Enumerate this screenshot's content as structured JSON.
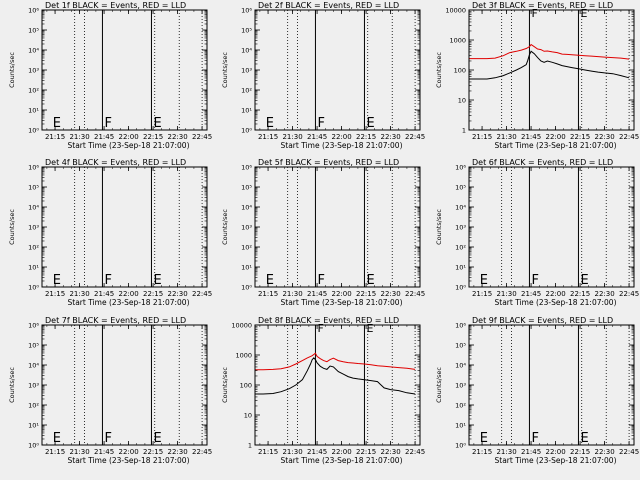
{
  "figure": {
    "background": "#efefef",
    "ylabel": "Counts/sec",
    "xlabel": "Start Time (23-Sep-18 21:07:00)",
    "xticks": [
      "21:15",
      "21:30",
      "21:45",
      "22:00",
      "22:15",
      "22:30",
      "22:45"
    ],
    "colors": {
      "events": "#000000",
      "lld": "#e00000",
      "axis": "#000000"
    },
    "marker_labels": [
      "E",
      "F",
      "E"
    ]
  },
  "chart_data": [
    {
      "type": "line",
      "title": "Det 1f BLACK = Events, RED = LLD",
      "empty": true,
      "yscale": "log",
      "ylim": [
        1,
        1000000
      ],
      "yticks": [
        "10⁰",
        "10¹",
        "10²",
        "10³",
        "10⁴",
        "10⁵",
        "10⁶"
      ],
      "marker_times": [
        "21:13",
        "21:44",
        "22:14"
      ],
      "dotted_times": [
        "21:27",
        "21:33",
        "22:16",
        "22:31",
        "22:45"
      ],
      "series": []
    },
    {
      "type": "line",
      "title": "Det 2f BLACK = Events, RED = LLD",
      "empty": true,
      "yscale": "log",
      "ylim": [
        1,
        1000000
      ],
      "yticks": [
        "10⁰",
        "10¹",
        "10²",
        "10³",
        "10⁴",
        "10⁵",
        "10⁶"
      ],
      "marker_times": [
        "21:13",
        "21:44",
        "22:14"
      ],
      "dotted_times": [
        "21:27",
        "21:33",
        "22:16",
        "22:31",
        "22:45"
      ],
      "series": []
    },
    {
      "type": "line",
      "title": "Det 3f BLACK = Events, RED = LLD",
      "empty": false,
      "yscale": "log",
      "ylim": [
        1,
        10000
      ],
      "yticks": [
        "1",
        "10",
        "100",
        "1000",
        "10000"
      ],
      "marker_times": [
        "21:13",
        "21:44",
        "22:14"
      ],
      "dotted_times": [
        "21:27",
        "21:33",
        "22:16",
        "22:31",
        "22:45"
      ],
      "series": [
        {
          "color": "#e00000",
          "x": [
            "21:07",
            "21:12",
            "21:18",
            "21:23",
            "21:28",
            "21:32",
            "21:36",
            "21:39",
            "21:42",
            "21:44",
            "21:45",
            "21:47",
            "21:49",
            "21:51",
            "21:53",
            "21:55",
            "21:58",
            "22:01",
            "22:04",
            "22:07",
            "22:10",
            "22:14",
            "22:18",
            "22:22",
            "22:26",
            "22:30",
            "22:35",
            "22:40",
            "22:45"
          ],
          "y": [
            240,
            240,
            240,
            250,
            300,
            380,
            420,
            460,
            520,
            600,
            700,
            600,
            500,
            480,
            420,
            430,
            400,
            380,
            340,
            330,
            320,
            310,
            300,
            290,
            280,
            270,
            260,
            250,
            230
          ]
        },
        {
          "color": "#000000",
          "x": [
            "21:07",
            "21:12",
            "21:18",
            "21:23",
            "21:28",
            "21:32",
            "21:36",
            "21:39",
            "21:42",
            "21:43",
            "21:44",
            "21:45",
            "21:47",
            "21:49",
            "21:51",
            "21:53",
            "21:55",
            "21:58",
            "22:01",
            "22:04",
            "22:07",
            "22:10",
            "22:14",
            "22:18",
            "22:22",
            "22:26",
            "22:30",
            "22:35",
            "22:40",
            "22:45"
          ],
          "y": [
            50,
            50,
            50,
            55,
            65,
            80,
            100,
            120,
            150,
            210,
            320,
            420,
            350,
            260,
            200,
            180,
            200,
            180,
            160,
            140,
            130,
            120,
            110,
            100,
            92,
            85,
            80,
            75,
            65,
            55
          ]
        }
      ]
    },
    {
      "type": "line",
      "title": "Det 4f BLACK = Events, RED = LLD",
      "empty": true,
      "yscale": "log",
      "ylim": [
        1,
        1000000
      ],
      "yticks": [
        "10⁰",
        "10¹",
        "10²",
        "10³",
        "10⁴",
        "10⁵",
        "10⁶"
      ],
      "marker_times": [
        "21:13",
        "21:44",
        "22:14"
      ],
      "dotted_times": [
        "21:27",
        "21:33",
        "22:16",
        "22:31",
        "22:45"
      ],
      "series": []
    },
    {
      "type": "line",
      "title": "Det 5f BLACK = Events, RED = LLD",
      "empty": true,
      "yscale": "log",
      "ylim": [
        1,
        1000000
      ],
      "yticks": [
        "10⁰",
        "10¹",
        "10²",
        "10³",
        "10⁴",
        "10⁵",
        "10⁶"
      ],
      "marker_times": [
        "21:13",
        "21:44",
        "22:14"
      ],
      "dotted_times": [
        "21:27",
        "21:33",
        "22:16",
        "22:31",
        "22:45"
      ],
      "series": []
    },
    {
      "type": "line",
      "title": "Det 6f BLACK = Events, RED = LLD",
      "empty": true,
      "yscale": "log",
      "ylim": [
        1,
        1000000
      ],
      "yticks": [
        "10⁰",
        "10¹",
        "10²",
        "10³",
        "10⁴",
        "10⁵",
        "10⁶"
      ],
      "marker_times": [
        "21:13",
        "21:44",
        "22:14"
      ],
      "dotted_times": [
        "21:27",
        "21:33",
        "22:16",
        "22:31",
        "22:45"
      ],
      "series": []
    },
    {
      "type": "line",
      "title": "Det 7f BLACK = Events, RED = LLD",
      "empty": true,
      "yscale": "log",
      "ylim": [
        1,
        1000000
      ],
      "yticks": [
        "10⁰",
        "10¹",
        "10²",
        "10³",
        "10⁴",
        "10⁵",
        "10⁶"
      ],
      "marker_times": [
        "21:13",
        "21:44",
        "22:14"
      ],
      "dotted_times": [
        "21:27",
        "21:33",
        "22:16",
        "22:31",
        "22:45"
      ],
      "series": []
    },
    {
      "type": "line",
      "title": "Det 8f BLACK = Events, RED = LLD",
      "empty": false,
      "yscale": "log",
      "ylim": [
        1,
        10000
      ],
      "yticks": [
        "1",
        "10",
        "100",
        "1000",
        "10000"
      ],
      "marker_times": [
        "21:13",
        "21:44",
        "22:14"
      ],
      "dotted_times": [
        "21:27",
        "21:33",
        "22:16",
        "22:31",
        "22:45"
      ],
      "series": [
        {
          "color": "#e00000",
          "x": [
            "21:07",
            "21:12",
            "21:18",
            "21:23",
            "21:28",
            "21:32",
            "21:36",
            "21:39",
            "21:42",
            "21:44",
            "21:45",
            "21:47",
            "21:49",
            "21:51",
            "21:53",
            "21:55",
            "21:58",
            "22:01",
            "22:04",
            "22:07",
            "22:10",
            "22:14",
            "22:18",
            "22:22",
            "22:26",
            "22:30",
            "22:35",
            "22:40",
            "22:45"
          ],
          "y": [
            320,
            320,
            330,
            350,
            400,
            500,
            650,
            800,
            950,
            1150,
            900,
            750,
            650,
            600,
            700,
            780,
            650,
            600,
            560,
            540,
            520,
            500,
            470,
            440,
            420,
            400,
            380,
            360,
            330
          ]
        },
        {
          "color": "#000000",
          "x": [
            "21:07",
            "21:12",
            "21:18",
            "21:23",
            "21:28",
            "21:32",
            "21:36",
            "21:39",
            "21:41",
            "21:42",
            "21:43",
            "21:44",
            "21:45",
            "21:47",
            "21:49",
            "21:51",
            "21:53",
            "21:55",
            "21:58",
            "22:01",
            "22:04",
            "22:07",
            "22:10",
            "22:14",
            "22:18",
            "22:22",
            "22:26",
            "22:30",
            "22:35",
            "22:40",
            "22:45"
          ],
          "y": [
            50,
            50,
            52,
            60,
            75,
            100,
            150,
            300,
            500,
            700,
            800,
            700,
            550,
            420,
            360,
            330,
            430,
            400,
            280,
            230,
            190,
            170,
            160,
            150,
            140,
            130,
            80,
            70,
            65,
            55,
            50
          ]
        }
      ]
    },
    {
      "type": "line",
      "title": "Det 9f BLACK = Events, RED = LLD",
      "empty": true,
      "yscale": "log",
      "ylim": [
        1,
        1000000
      ],
      "yticks": [
        "10⁰",
        "10¹",
        "10²",
        "10³",
        "10⁴",
        "10⁵",
        "10⁶"
      ],
      "marker_times": [
        "21:13",
        "21:44",
        "22:14"
      ],
      "dotted_times": [
        "21:27",
        "21:33",
        "22:16",
        "22:31",
        "22:45"
      ],
      "series": []
    }
  ]
}
